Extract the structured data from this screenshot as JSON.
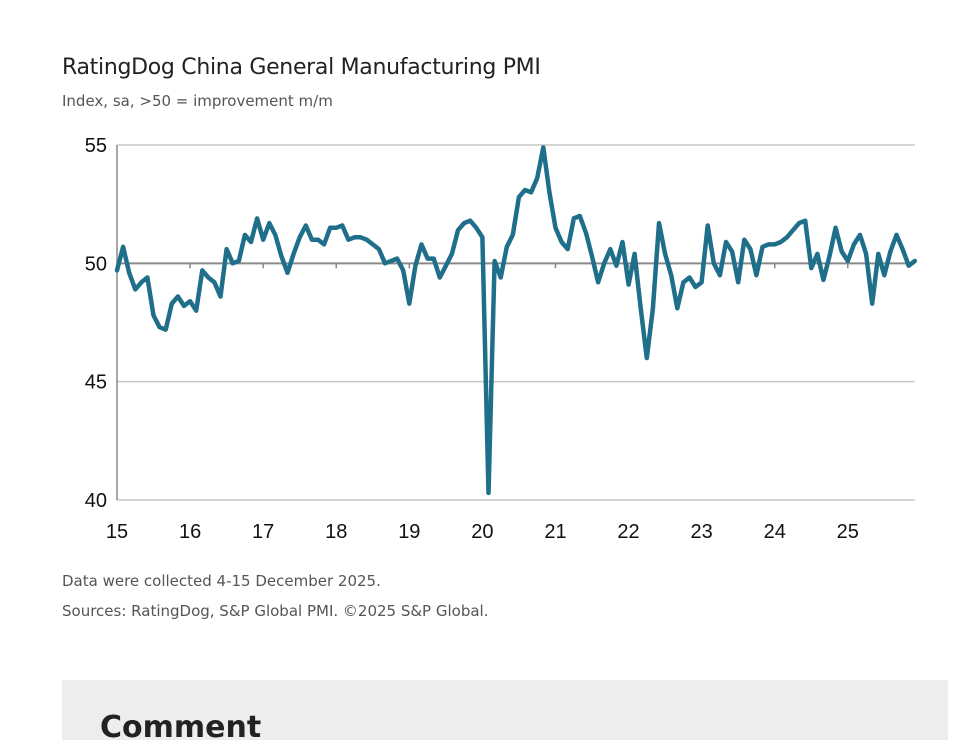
{
  "chart_data": {
    "type": "line",
    "title": "RatingDog China General Manufacturing PMI",
    "subtitle": "Index, sa, >50 = improvement m/m",
    "xlabel": "",
    "ylabel": "",
    "ylim": [
      40,
      55
    ],
    "yticks": [
      "40",
      "45",
      "50",
      "55"
    ],
    "xticks": [
      "15",
      "16",
      "17",
      "18",
      "19",
      "20",
      "21",
      "22",
      "23",
      "24",
      "25"
    ],
    "grid": true,
    "start": "2015-01",
    "frequency": "monthly",
    "series": [
      {
        "name": "PMI",
        "color": "#1f6f8b",
        "values": [
          49.7,
          50.7,
          49.6,
          48.9,
          49.2,
          49.4,
          47.8,
          47.3,
          47.2,
          48.3,
          48.6,
          48.2,
          48.4,
          48.0,
          49.7,
          49.4,
          49.2,
          48.6,
          50.6,
          50.0,
          50.1,
          51.2,
          50.9,
          51.9,
          51.0,
          51.7,
          51.2,
          50.3,
          49.6,
          50.4,
          51.1,
          51.6,
          51.0,
          51.0,
          50.8,
          51.5,
          51.5,
          51.6,
          51.0,
          51.1,
          51.1,
          51.0,
          50.8,
          50.6,
          50.0,
          50.1,
          50.2,
          49.7,
          48.3,
          49.9,
          50.8,
          50.2,
          50.2,
          49.4,
          49.9,
          50.4,
          51.4,
          51.7,
          51.8,
          51.5,
          51.1,
          40.3,
          50.1,
          49.4,
          50.7,
          51.2,
          52.8,
          53.1,
          53.0,
          53.6,
          54.9,
          53.0,
          51.5,
          50.9,
          50.6,
          51.9,
          52.0,
          51.3,
          50.3,
          49.2,
          50.0,
          50.6,
          49.9,
          50.9,
          49.1,
          50.4,
          48.1,
          46.0,
          48.1,
          51.7,
          50.4,
          49.5,
          48.1,
          49.2,
          49.4,
          49.0,
          49.2,
          51.6,
          50.0,
          49.5,
          50.9,
          50.5,
          49.2,
          51.0,
          50.6,
          49.5,
          50.7,
          50.8,
          50.8,
          50.9,
          51.1,
          51.4,
          51.7,
          51.8,
          49.8,
          50.4,
          49.3,
          50.3,
          51.5,
          50.5,
          50.1,
          50.8,
          51.2,
          50.4,
          48.3,
          50.4,
          49.5,
          50.5,
          51.2,
          50.6,
          49.9,
          50.1
        ]
      }
    ],
    "reference_line": 50
  },
  "footer": {
    "note": "Data were collected 4-15 December 2025.",
    "sources": "Sources: RatingDog, S&P Global PMI. ©2025 S&P Global."
  },
  "comment": {
    "heading": "Comment"
  }
}
